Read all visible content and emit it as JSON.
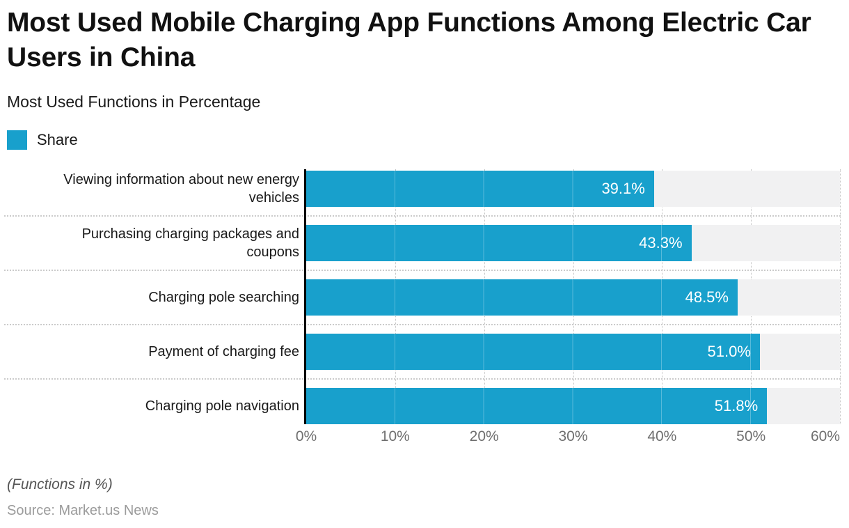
{
  "header": {
    "title": "Most Used Mobile Charging App Functions Among Electric Car Users in China",
    "subtitle": "Most Used Functions in Percentage"
  },
  "legend": {
    "label": "Share"
  },
  "footer": {
    "note": "(Functions in %)",
    "source": "Source: Market.us News"
  },
  "chart_data": {
    "type": "bar",
    "orientation": "horizontal",
    "title": "Most Used Mobile Charging App Functions Among Electric Car Users in China",
    "subtitle": "Most Used Functions in Percentage",
    "series_name": "Share",
    "categories": [
      "Viewing information about new energy vehicles",
      "Purchasing charging packages and coupons",
      "Charging pole searching",
      "Payment of charging fee",
      "Charging pole navigation"
    ],
    "values": [
      39.1,
      43.3,
      48.5,
      51.0,
      51.8
    ],
    "value_labels": [
      "39.1%",
      "43.3%",
      "48.5%",
      "51.0%",
      "51.8%"
    ],
    "xlim": [
      0,
      60
    ],
    "x_ticks": [
      "0%",
      "10%",
      "20%",
      "30%",
      "40%",
      "50%",
      "60%"
    ],
    "grid": true,
    "legend_position": "top-left",
    "colors": {
      "bar": "#18a0cc",
      "track": "#f1f1f2",
      "gridline": "#c4c4c4",
      "axis": "#000000",
      "value_text": "#ffffff"
    }
  }
}
